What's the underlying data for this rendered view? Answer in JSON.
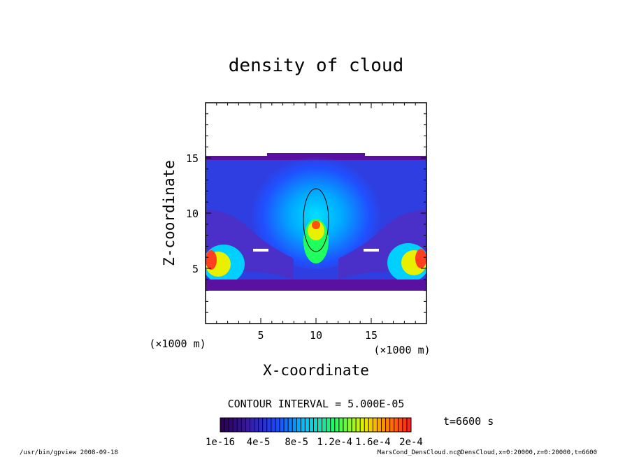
{
  "chart_data": {
    "type": "heatmap",
    "title": "density of cloud",
    "xlabel": "X-coordinate",
    "ylabel": "Z-coordinate",
    "x_unit": "(×1000 m)",
    "y_unit": "(×1000 m)",
    "xlim": [
      0,
      20
    ],
    "ylim": [
      0,
      20
    ],
    "x_ticks": [
      "5",
      "10",
      "15"
    ],
    "y_ticks": [
      "5",
      "10",
      "15"
    ],
    "x_tick_values": [
      5,
      10,
      15
    ],
    "y_tick_values": [
      5,
      10,
      15
    ],
    "contour_interval": "CONTOUR INTERVAL = 5.000E-05",
    "colorbar_ticks": [
      "1e-16",
      "4e-5",
      "8e-5",
      "1.2e-4",
      "1.6e-4",
      "2e-4"
    ],
    "colorbar_range": [
      1e-16,
      0.0002
    ],
    "time_label": "t=6600 s",
    "colors": {
      "low": "#3a0060",
      "mid": "#00c8ff",
      "high": "#ff3000"
    }
  },
  "footer": {
    "left": "/usr/bin/gpview  2008-09-18",
    "right": "MarsCond_DensCloud.nc@DensCloud,x=0:20000,z=0:20000,t=6600"
  }
}
